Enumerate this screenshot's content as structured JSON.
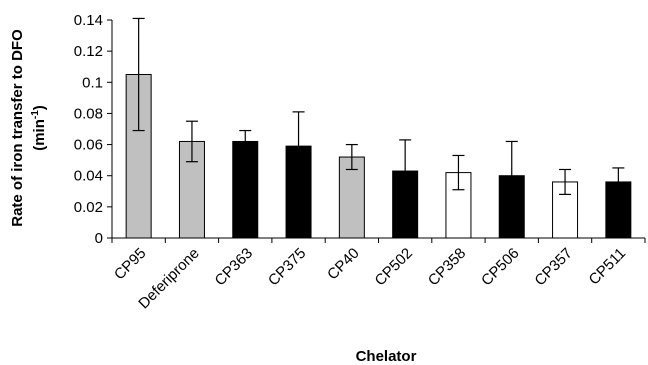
{
  "chart_data": {
    "type": "bar",
    "title": "",
    "xlabel": "Chelator",
    "ylabel": "Rate of iron transfer to DFO",
    "ylabel_unit": "(min",
    "ylabel_unit_exp": "-1",
    "ylabel_unit_close": ")",
    "ylim": [
      0,
      0.14
    ],
    "yticks": [
      "0",
      "0.02",
      "0.04",
      "0.06",
      "0.08",
      "0.1",
      "0.12",
      "0.14"
    ],
    "grid": false,
    "legend": "none",
    "categories": [
      "CP95",
      "Deferiprone",
      "CP363",
      "CP375",
      "CP40",
      "CP502",
      "CP358",
      "CP506",
      "CP357",
      "CP511"
    ],
    "values": [
      0.105,
      0.062,
      0.062,
      0.059,
      0.052,
      0.043,
      0.042,
      0.04,
      0.036,
      0.036
    ],
    "error": [
      0.036,
      0.013,
      0.007,
      0.022,
      0.008,
      0.02,
      0.011,
      0.022,
      0.008,
      0.009
    ],
    "fills": [
      "gray",
      "gray",
      "black",
      "black",
      "gray",
      "black",
      "white",
      "black",
      "white",
      "black"
    ],
    "colors": {
      "gray": "#c0c0c0",
      "black": "#000000",
      "white": "#ffffff",
      "stroke": "#000000"
    }
  }
}
